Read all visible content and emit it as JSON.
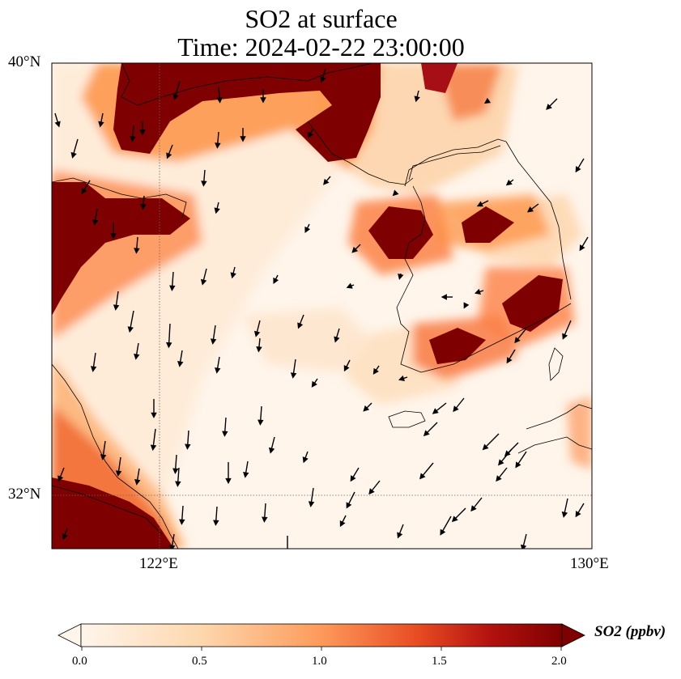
{
  "title": {
    "line1": "SO2 at surface",
    "line2": "Time: 2024-02-22 23:00:00"
  },
  "axes": {
    "lat_ticks": [
      "40°N",
      "32°N"
    ],
    "lon_ticks": [
      "122°E",
      "130°E"
    ]
  },
  "colorbar": {
    "label": "SO2 (ppbv)",
    "ticks": [
      "0.0",
      "0.5",
      "1.0",
      "1.5",
      "2.0"
    ],
    "colors": [
      "#fff5eb",
      "#fdd0a2",
      "#fd8d3c",
      "#d94801",
      "#a50f15",
      "#7f0000"
    ]
  },
  "map": {
    "region": "Yellow Sea / Korean Peninsula",
    "lon_range": [
      120,
      130
    ],
    "lat_range": [
      31,
      40
    ],
    "wind_direction": "northerly"
  }
}
